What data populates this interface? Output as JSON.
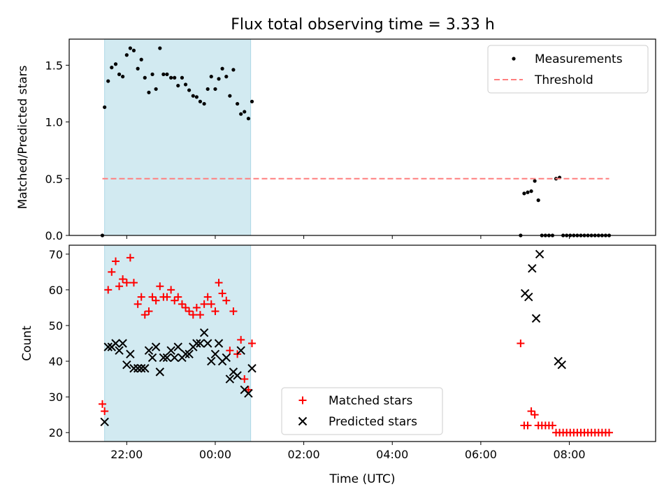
{
  "title": "Flux total observing time = 3.33 h",
  "colors": {
    "measurement": "#000000",
    "threshold": "#ff7f7f",
    "matched": "#ff0000",
    "predicted": "#000000",
    "shade": "#add8e6"
  },
  "chart_data": [
    {
      "type": "scatter",
      "ylabel": "Matched/Predicted stars",
      "xlim": [
        20.7,
        33.95
      ],
      "ylim": [
        0,
        1.73
      ],
      "yticks": [
        0.0,
        0.5,
        1.0,
        1.5
      ],
      "ytick_labels": [
        "0.0",
        "0.5",
        "1.0",
        "1.5"
      ],
      "legend_position": "top-right",
      "shaded_span": [
        21.5,
        24.8
      ],
      "series": [
        {
          "name": "Measurements",
          "marker": "dot",
          "x": [
            21.45,
            21.5,
            21.58,
            21.66,
            21.75,
            21.83,
            21.91,
            22.0,
            22.08,
            22.16,
            22.25,
            22.33,
            22.41,
            22.5,
            22.58,
            22.66,
            22.75,
            22.83,
            22.91,
            23.0,
            23.08,
            23.16,
            23.25,
            23.33,
            23.41,
            23.5,
            23.58,
            23.66,
            23.75,
            23.83,
            23.91,
            24.0,
            24.08,
            24.16,
            24.25,
            24.33,
            24.41,
            24.5,
            24.58,
            24.66,
            24.75,
            24.83,
            30.9,
            30.98,
            31.06,
            31.14,
            31.22,
            31.3,
            31.38,
            31.46,
            31.54,
            31.62,
            31.7,
            31.78,
            31.86,
            31.94,
            32.02,
            32.1,
            32.18,
            32.26,
            32.34,
            32.42,
            32.5,
            32.58,
            32.66,
            32.74,
            32.82,
            32.9
          ],
          "y": [
            0.0,
            1.13,
            1.36,
            1.48,
            1.51,
            1.42,
            1.4,
            1.59,
            1.65,
            1.63,
            1.47,
            1.55,
            1.39,
            1.26,
            1.42,
            1.29,
            1.65,
            1.42,
            1.42,
            1.39,
            1.39,
            1.32,
            1.39,
            1.33,
            1.28,
            1.23,
            1.22,
            1.18,
            1.16,
            1.29,
            1.4,
            1.29,
            1.38,
            1.47,
            1.4,
            1.23,
            1.46,
            1.16,
            1.07,
            1.09,
            1.03,
            1.18,
            0.0,
            0.37,
            0.38,
            0.39,
            0.48,
            0.31,
            0.0,
            0.0,
            0.0,
            0.0,
            0.5,
            0.51,
            0.0,
            0.0,
            0.0,
            0.0,
            0.0,
            0.0,
            0.0,
            0.0,
            0.0,
            0.0,
            0.0,
            0.0,
            0.0,
            0.0
          ]
        },
        {
          "name": "Threshold",
          "style": "dashed-line",
          "x": [
            21.45,
            32.9
          ],
          "y": [
            0.5,
            0.5
          ]
        }
      ]
    },
    {
      "type": "scatter",
      "xlabel": "Time (UTC)",
      "ylabel": "Count",
      "xlim": [
        20.7,
        33.95
      ],
      "ylim": [
        17.5,
        72.5
      ],
      "yticks": [
        20,
        30,
        40,
        50,
        60,
        70
      ],
      "ytick_labels": [
        "20",
        "30",
        "40",
        "50",
        "60",
        "70"
      ],
      "xticks": [
        22,
        24,
        26,
        28,
        30,
        32
      ],
      "xtick_labels": [
        "22:00",
        "00:00",
        "02:00",
        "04:00",
        "06:00",
        "08:00"
      ],
      "legend_position": "lower-center",
      "shaded_span": [
        21.5,
        24.8
      ],
      "series": [
        {
          "name": "Matched stars",
          "marker": "plus",
          "x": [
            21.45,
            21.5,
            21.58,
            21.66,
            21.75,
            21.83,
            21.91,
            22.0,
            22.08,
            22.16,
            22.25,
            22.33,
            22.41,
            22.5,
            22.58,
            22.66,
            22.75,
            22.83,
            22.91,
            23.0,
            23.08,
            23.16,
            23.25,
            23.33,
            23.41,
            23.5,
            23.58,
            23.66,
            23.75,
            23.83,
            23.91,
            24.0,
            24.08,
            24.16,
            24.25,
            24.33,
            24.41,
            24.5,
            24.58,
            24.66,
            24.75,
            24.83,
            30.9,
            30.98,
            31.06,
            31.14,
            31.22,
            31.3,
            31.38,
            31.46,
            31.54,
            31.62,
            31.7,
            31.78,
            31.86,
            31.94,
            32.02,
            32.1,
            32.18,
            32.26,
            32.34,
            32.42,
            32.5,
            32.58,
            32.66,
            32.74,
            32.82,
            32.9
          ],
          "y": [
            28,
            26,
            60,
            65,
            68,
            61,
            63,
            62,
            69,
            62,
            56,
            58,
            53,
            54,
            58,
            57,
            61,
            58,
            58,
            60,
            57,
            58,
            56,
            55,
            54,
            53,
            55,
            53,
            56,
            58,
            56,
            54,
            62,
            59,
            57,
            43,
            54,
            42,
            46,
            35,
            32,
            45,
            45,
            22,
            22,
            26,
            25,
            22,
            22,
            22,
            22,
            22,
            20,
            20,
            20,
            20,
            20,
            20,
            20,
            20,
            20,
            20,
            20,
            20,
            20,
            20,
            20,
            20
          ]
        },
        {
          "name": "Predicted stars",
          "marker": "x",
          "x": [
            21.5,
            21.58,
            21.66,
            21.75,
            21.83,
            21.91,
            22.0,
            22.08,
            22.16,
            22.25,
            22.33,
            22.41,
            22.5,
            22.58,
            22.66,
            22.75,
            22.83,
            22.91,
            23.0,
            23.08,
            23.16,
            23.25,
            23.33,
            23.41,
            23.5,
            23.58,
            23.66,
            23.75,
            23.83,
            23.91,
            24.0,
            24.08,
            24.16,
            24.25,
            24.33,
            24.41,
            24.5,
            24.58,
            24.66,
            24.75,
            24.83,
            31.0,
            31.08,
            31.16,
            31.25,
            31.33,
            31.75,
            31.83
          ],
          "y": [
            23,
            44,
            44,
            45,
            43,
            45,
            39,
            42,
            38,
            38,
            38,
            38,
            43,
            41,
            44,
            37,
            41,
            41,
            43,
            41,
            44,
            41,
            42,
            42,
            44,
            45,
            45,
            48,
            45,
            40,
            42,
            45,
            40,
            41,
            35,
            37,
            36,
            43,
            32,
            31,
            38,
            59,
            58,
            66,
            52,
            70,
            40,
            39
          ]
        }
      ]
    }
  ]
}
